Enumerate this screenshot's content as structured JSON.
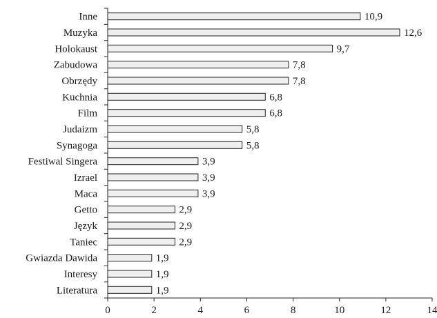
{
  "chart_data": {
    "type": "bar",
    "orientation": "horizontal",
    "categories": [
      "Inne",
      "Muzyka",
      "Holokaust",
      "Zabudowa",
      "Obrzędy",
      "Kuchnia",
      "Film",
      "Judaizm",
      "Synagoga",
      "Festiwal Singera",
      "Izrael",
      "Maca",
      "Getto",
      "Język",
      "Taniec",
      "Gwiazda Dawida",
      "Interesy",
      "Literatura"
    ],
    "values": [
      10.9,
      12.6,
      9.7,
      7.8,
      7.8,
      6.8,
      6.8,
      5.8,
      5.8,
      3.9,
      3.9,
      3.9,
      2.9,
      2.9,
      2.9,
      1.9,
      1.9,
      1.9
    ],
    "value_labels": [
      "10,9",
      "12,6",
      "9,7",
      "7,8",
      "7,8",
      "6,8",
      "6,8",
      "5,8",
      "5,8",
      "3,9",
      "3,9",
      "3,9",
      "2,9",
      "2,9",
      "2,9",
      "1,9",
      "1,9",
      "1,9"
    ],
    "xticks": [
      0,
      2,
      4,
      6,
      8,
      10,
      12,
      14
    ],
    "xlim": [
      0,
      14
    ],
    "title": "",
    "xlabel": "",
    "ylabel": "",
    "grid": false,
    "legend": "none",
    "bar_fill": "#efefef",
    "bar_stroke": "#222222"
  }
}
